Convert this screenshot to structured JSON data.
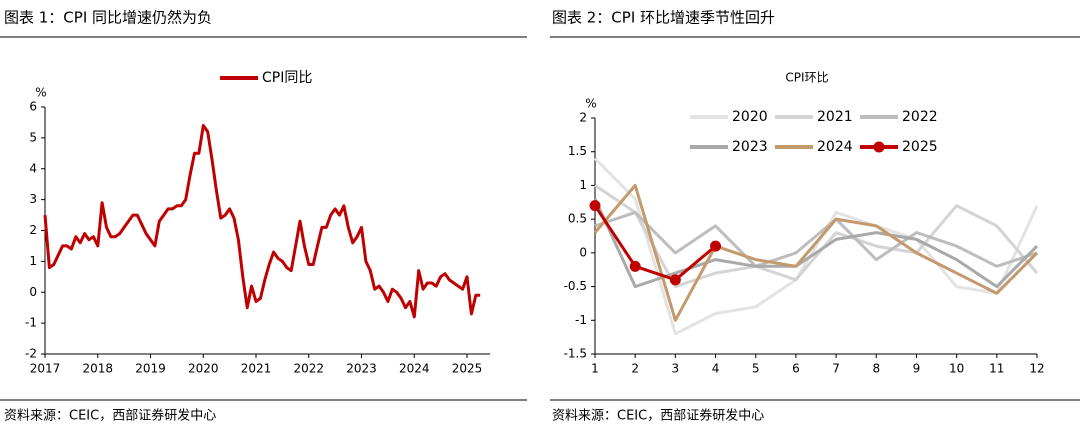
{
  "panels": [
    {
      "caption": "图表 1：CPI 同比增速仍然为负",
      "source": "资料来源：CEIC，西部证券研发中心"
    },
    {
      "caption": "图表 2：CPI 环比增速季节性回升",
      "source": "资料来源：CEIC，西部证券研发中心"
    }
  ],
  "chart_data": [
    {
      "type": "line",
      "y_label": "%",
      "categories": [
        "2017",
        null,
        null,
        null,
        null,
        null,
        null,
        null,
        null,
        null,
        null,
        null,
        "2018",
        null,
        null,
        null,
        null,
        null,
        null,
        null,
        null,
        null,
        null,
        null,
        "2019",
        null,
        null,
        null,
        null,
        null,
        null,
        null,
        null,
        null,
        null,
        null,
        "2020",
        null,
        null,
        null,
        null,
        null,
        null,
        null,
        null,
        null,
        null,
        null,
        "2021",
        null,
        null,
        null,
        null,
        null,
        null,
        null,
        null,
        null,
        null,
        null,
        "2022",
        null,
        null,
        null,
        null,
        null,
        null,
        null,
        null,
        null,
        null,
        null,
        "2023",
        null,
        null,
        null,
        null,
        null,
        null,
        null,
        null,
        null,
        null,
        null,
        "2024",
        null,
        null,
        null,
        null,
        null,
        null,
        null,
        null,
        null,
        null,
        null,
        "2025",
        null,
        null,
        null
      ],
      "series": [
        {
          "name": "CPI同比",
          "color": "#c00000",
          "values": [
            2.5,
            0.8,
            0.9,
            1.2,
            1.5,
            1.5,
            1.4,
            1.8,
            1.6,
            1.9,
            1.7,
            1.8,
            1.5,
            2.9,
            2.1,
            1.8,
            1.8,
            1.9,
            2.1,
            2.3,
            2.5,
            2.5,
            2.2,
            1.9,
            1.7,
            1.5,
            2.3,
            2.5,
            2.7,
            2.7,
            2.8,
            2.8,
            3.0,
            3.8,
            4.5,
            4.5,
            5.4,
            5.2,
            4.3,
            3.3,
            2.4,
            2.5,
            2.7,
            2.4,
            1.7,
            0.5,
            -0.5,
            0.2,
            -0.3,
            -0.2,
            0.4,
            0.9,
            1.3,
            1.1,
            1.0,
            0.8,
            0.7,
            1.5,
            2.3,
            1.5,
            0.9,
            0.9,
            1.5,
            2.1,
            2.1,
            2.5,
            2.7,
            2.5,
            2.8,
            2.1,
            1.6,
            1.8,
            2.1,
            1.0,
            0.7,
            0.1,
            0.2,
            0.0,
            -0.3,
            0.1,
            0.0,
            -0.2,
            -0.5,
            -0.3,
            -0.8,
            0.7,
            0.1,
            0.3,
            0.3,
            0.2,
            0.5,
            0.6,
            0.4,
            0.3,
            0.2,
            0.1,
            0.5,
            -0.7,
            -0.1,
            -0.1
          ]
        }
      ],
      "ylim": [
        -2,
        6
      ],
      "yticks": [
        -2,
        -1,
        0,
        1,
        2,
        3,
        4,
        5,
        6
      ]
    },
    {
      "type": "line",
      "title": "CPI环比",
      "y_label": "%",
      "categories": [
        "1",
        "2",
        "3",
        "4",
        "5",
        "6",
        "7",
        "8",
        "9",
        "10",
        "11",
        "12"
      ],
      "series": [
        {
          "name": "2020",
          "color": "#e3e3e3",
          "values": [
            1.4,
            0.8,
            -1.2,
            -0.9,
            -0.8,
            -0.4,
            0.6,
            0.4,
            0.2,
            -0.5,
            -0.6,
            0.7
          ]
        },
        {
          "name": "2021",
          "color": "#d4d4d4",
          "values": [
            1.0,
            0.6,
            -0.5,
            -0.3,
            -0.2,
            -0.4,
            0.3,
            0.1,
            0.0,
            0.7,
            0.4,
            -0.3
          ]
        },
        {
          "name": "2022",
          "color": "#bdbdbd",
          "values": [
            0.4,
            0.6,
            0.0,
            0.4,
            -0.2,
            0.0,
            0.5,
            -0.1,
            0.3,
            0.1,
            -0.2,
            0.0
          ]
        },
        {
          "name": "2023",
          "color": "#a9a9a9",
          "values": [
            0.8,
            -0.5,
            -0.3,
            -0.1,
            -0.2,
            -0.2,
            0.2,
            0.3,
            0.2,
            -0.1,
            -0.5,
            0.1
          ]
        },
        {
          "name": "2024",
          "color": "#c49a6c",
          "values": [
            0.3,
            1.0,
            -1.0,
            0.1,
            -0.1,
            -0.2,
            0.5,
            0.4,
            0.0,
            -0.3,
            -0.6,
            0.0
          ]
        },
        {
          "name": "2025",
          "color": "#c00000",
          "marker": true,
          "values": [
            0.7,
            -0.2,
            -0.4,
            0.1,
            null,
            null,
            null,
            null,
            null,
            null,
            null,
            null
          ]
        }
      ],
      "ylim": [
        -1.5,
        2
      ],
      "yticks": [
        -1.5,
        -1,
        -0.5,
        0,
        0.5,
        1,
        1.5,
        2
      ]
    }
  ]
}
